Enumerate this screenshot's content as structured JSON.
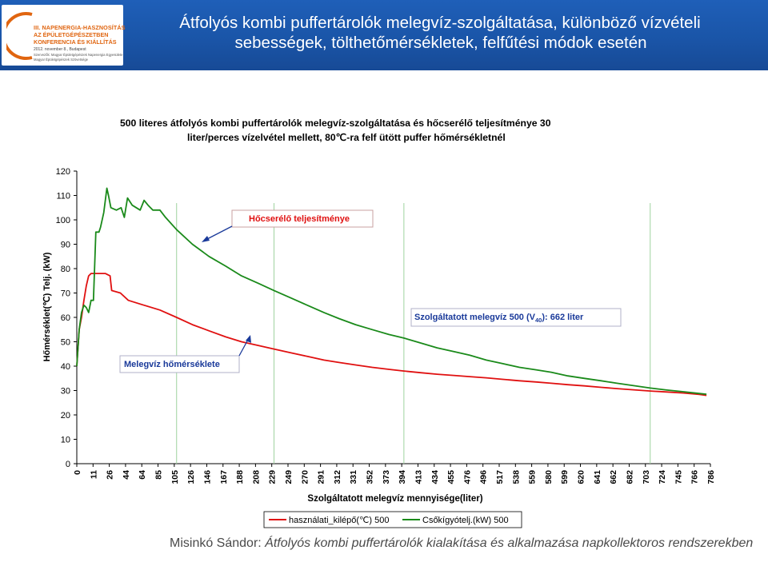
{
  "slide": {
    "title_line1": "Átfolyós kombi puffertárolók melegvíz-szolgáltatása, különböző vízvételi",
    "title_line2": "sebességek, tölthetőmérsékletek, felfűtési módok esetén",
    "footer_author": "Misinkó Sándor: ",
    "footer_text": "Átfolyós kombi puffertárolók kialakítása és alkalmazása napkollektoros rendszerekben",
    "colors": {
      "header_blue": "#1a55a8",
      "title_text": "#ffffff",
      "logo_orange": "#e06510"
    }
  },
  "logo": {
    "line1": "III. NAPENERGIA-HASZNOSÍTÁS",
    "line2": "AZ ÉPÜLETGÉPÉSZETBEN",
    "line3": "KONFERENCIA ÉS KIÁLLÍTÁS",
    "line4": "2012. november 8., Budapest",
    "line5": "Szervezők: Magyar Épületgépészek Napenergia Egyesülete",
    "line6": "Magyar Épületgépészek Szövetsége"
  },
  "chart_data": {
    "type": "line",
    "title_line1": "500 literes átfolyós kombi puffertárolók melegvíz-szolgáltatása és hőcserélő teljesítménye 30",
    "title_line2": "liter/perces vízelvétel mellett, 80℃-ra felf ütött puffer hőmérsékletnél",
    "xlabel": "Szolgáltatott melegvíz mennyisége(liter)",
    "ylabel": "Hőmérséklet(℃) Telj. (kW)",
    "ylim": [
      0,
      120
    ],
    "y_ticks": [
      0,
      10,
      20,
      30,
      40,
      50,
      60,
      70,
      80,
      90,
      100,
      110,
      120
    ],
    "x_ticks": [
      "0",
      "11",
      "26",
      "44",
      "64",
      "85",
      "105",
      "126",
      "146",
      "167",
      "188",
      "208",
      "229",
      "249",
      "270",
      "291",
      "312",
      "331",
      "352",
      "373",
      "394",
      "413",
      "434",
      "455",
      "476",
      "496",
      "517",
      "538",
      "559",
      "580",
      "599",
      "620",
      "641",
      "662",
      "682",
      "703",
      "724",
      "745",
      "766",
      "786"
    ],
    "xlim": [
      0,
      800
    ],
    "grid": "vertical gridlines at 126, 249, 413, 724",
    "vertical_gridlines_x": [
      126,
      249,
      413,
      724
    ],
    "legend_position": "bottom",
    "series": [
      {
        "name": "használati_kilépő(℃) 500",
        "color": "#e01010",
        "points": [
          [
            0,
            40
          ],
          [
            3,
            55
          ],
          [
            6,
            60
          ],
          [
            9,
            67
          ],
          [
            12,
            73
          ],
          [
            15,
            77
          ],
          [
            18,
            78
          ],
          [
            24,
            78
          ],
          [
            36,
            78
          ],
          [
            42,
            77
          ],
          [
            44,
            71
          ],
          [
            55,
            70
          ],
          [
            65,
            67
          ],
          [
            85,
            65
          ],
          [
            105,
            63
          ],
          [
            126,
            60
          ],
          [
            146,
            57
          ],
          [
            167,
            54.5
          ],
          [
            188,
            52
          ],
          [
            208,
            50
          ],
          [
            229,
            48.5
          ],
          [
            249,
            47
          ],
          [
            270,
            45.5
          ],
          [
            291,
            44
          ],
          [
            312,
            42.5
          ],
          [
            331,
            41.5
          ],
          [
            352,
            40.5
          ],
          [
            373,
            39.5
          ],
          [
            394,
            38.7
          ],
          [
            413,
            38
          ],
          [
            434,
            37.3
          ],
          [
            455,
            36.7
          ],
          [
            476,
            36.2
          ],
          [
            496,
            35.7
          ],
          [
            517,
            35.2
          ],
          [
            538,
            34.6
          ],
          [
            559,
            34
          ],
          [
            580,
            33.5
          ],
          [
            599,
            33
          ],
          [
            620,
            32.4
          ],
          [
            641,
            31.9
          ],
          [
            662,
            31.3
          ],
          [
            682,
            30.8
          ],
          [
            703,
            30.3
          ],
          [
            724,
            29.8
          ],
          [
            745,
            29.4
          ],
          [
            766,
            29
          ],
          [
            786,
            28.4
          ],
          [
            795,
            28
          ]
        ]
      },
      {
        "name": "Csőkígyótelj.(kW) 500",
        "color": "#1a8a1a",
        "points": [
          [
            0,
            40
          ],
          [
            3,
            55
          ],
          [
            6,
            62
          ],
          [
            9,
            65
          ],
          [
            12,
            64
          ],
          [
            15,
            62
          ],
          [
            18,
            67
          ],
          [
            21,
            67
          ],
          [
            24,
            95
          ],
          [
            28,
            95
          ],
          [
            30,
            97
          ],
          [
            34,
            103
          ],
          [
            38,
            113
          ],
          [
            40,
            110
          ],
          [
            43,
            105
          ],
          [
            50,
            104
          ],
          [
            56,
            105
          ],
          [
            60,
            101
          ],
          [
            64,
            109
          ],
          [
            70,
            106
          ],
          [
            80,
            104
          ],
          [
            85,
            108
          ],
          [
            90,
            106
          ],
          [
            96,
            104
          ],
          [
            105,
            104
          ],
          [
            112,
            101
          ],
          [
            126,
            96
          ],
          [
            146,
            90
          ],
          [
            167,
            85
          ],
          [
            188,
            81
          ],
          [
            208,
            77
          ],
          [
            229,
            74
          ],
          [
            249,
            71
          ],
          [
            270,
            68
          ],
          [
            291,
            65
          ],
          [
            312,
            62
          ],
          [
            331,
            59.5
          ],
          [
            352,
            57
          ],
          [
            373,
            55
          ],
          [
            394,
            53
          ],
          [
            413,
            51.5
          ],
          [
            434,
            49.5
          ],
          [
            455,
            47.5
          ],
          [
            476,
            46
          ],
          [
            496,
            44.5
          ],
          [
            517,
            42.5
          ],
          [
            538,
            41
          ],
          [
            559,
            39.5
          ],
          [
            580,
            38.5
          ],
          [
            599,
            37.5
          ],
          [
            620,
            36
          ],
          [
            641,
            35
          ],
          [
            662,
            34
          ],
          [
            682,
            33
          ],
          [
            703,
            32
          ],
          [
            724,
            31
          ],
          [
            745,
            30.2
          ],
          [
            766,
            29.5
          ],
          [
            786,
            28.8
          ],
          [
            795,
            28.5
          ]
        ]
      }
    ],
    "annotations": [
      {
        "text": "Hőcserélő teljesítménye",
        "color": "#e01010",
        "arrow_to": [
          126,
          92
        ]
      },
      {
        "text": "Szolgáltatott melegvíz 500 (V",
        "sub": "40",
        "text_after": "): 662 liter",
        "color": "#1a3a9a"
      },
      {
        "text": "Melegvíz hőmérséklete",
        "color": "#1a3a9a",
        "arrow_to": [
          208,
          52
        ]
      }
    ]
  }
}
